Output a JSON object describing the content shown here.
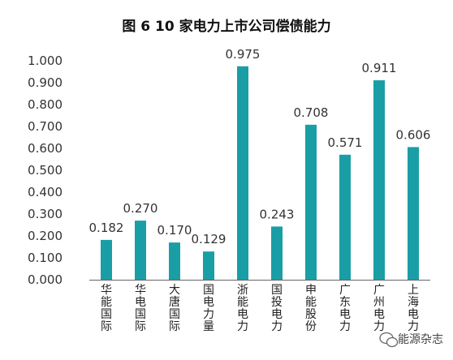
{
  "chart_data": {
    "type": "bar",
    "title": "图 6  10 家电力上市公司偿债能力",
    "categories": [
      "华能国际",
      "华电国际",
      "大唐国际",
      "国电力量",
      "浙能电力",
      "国投电力",
      "申能股份",
      "广东电力",
      "广州电力",
      "上海电力"
    ],
    "values": [
      0.182,
      0.27,
      0.17,
      0.129,
      0.975,
      0.243,
      0.708,
      0.571,
      0.911,
      0.606
    ],
    "value_labels": [
      "0.182",
      "0.270",
      "0.170",
      "0.129",
      "0.975",
      "0.243",
      "0.708",
      "0.571",
      "0.911",
      "0.606"
    ],
    "yticks": [
      "0.000",
      "0.100",
      "0.200",
      "0.300",
      "0.400",
      "0.500",
      "0.600",
      "0.700",
      "0.800",
      "0.900",
      "1.000"
    ],
    "ylim": [
      0,
      1.0
    ],
    "xlabel": "",
    "ylabel": "",
    "grid": false,
    "bar_color": "#1a9ea6"
  },
  "watermark": {
    "text": "能源杂志",
    "icon": "wechat-icon"
  }
}
